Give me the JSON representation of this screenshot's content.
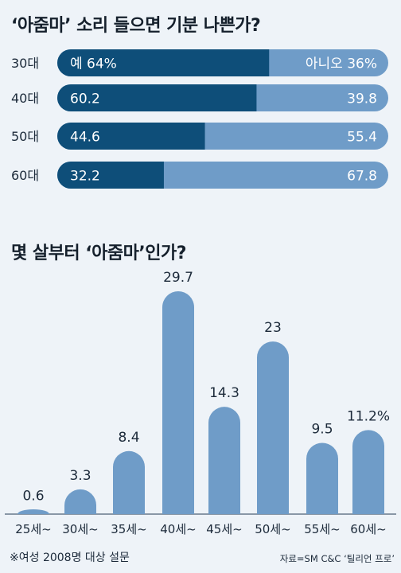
{
  "chart_data": [
    {
      "type": "bar",
      "stacked": true,
      "orientation": "horizontal",
      "title": "‘아줌마’ 소리 들으면 기분 나쁜가?",
      "categories": [
        "30대",
        "40대",
        "50대",
        "60대"
      ],
      "unit": "%",
      "series": [
        {
          "name": "예",
          "values": [
            64,
            60.2,
            44.6,
            32.2
          ],
          "labels": [
            "예 64%",
            "60.2",
            "44.6",
            "32.2"
          ],
          "color": "#0e4e79"
        },
        {
          "name": "아니오",
          "values": [
            36,
            39.8,
            55.4,
            67.8
          ],
          "labels": [
            "아니오 36%",
            "39.8",
            "55.4",
            "67.8"
          ],
          "color": "#6f9cc8"
        }
      ],
      "xlim": [
        0,
        100
      ]
    },
    {
      "type": "bar",
      "title": "몇 살부터 ‘아줌마’인가?",
      "categories": [
        "25세~",
        "30세~",
        "35세~",
        "40세~",
        "45세~",
        "50세~",
        "55세~",
        "60세~"
      ],
      "values": [
        0.6,
        3.3,
        8.4,
        29.7,
        14.3,
        23,
        9.5,
        11.2
      ],
      "value_labels": [
        "0.6",
        "3.3",
        "8.4",
        "29.7",
        "14.3",
        "23",
        "9.5",
        "11.2%"
      ],
      "unit": "%",
      "color": "#6f9cc8",
      "ylim": [
        0,
        30
      ]
    }
  ],
  "footnote": "※여성 2008명 대상 설문",
  "source": "자료=SM C&C ‘틸리언 프로’"
}
